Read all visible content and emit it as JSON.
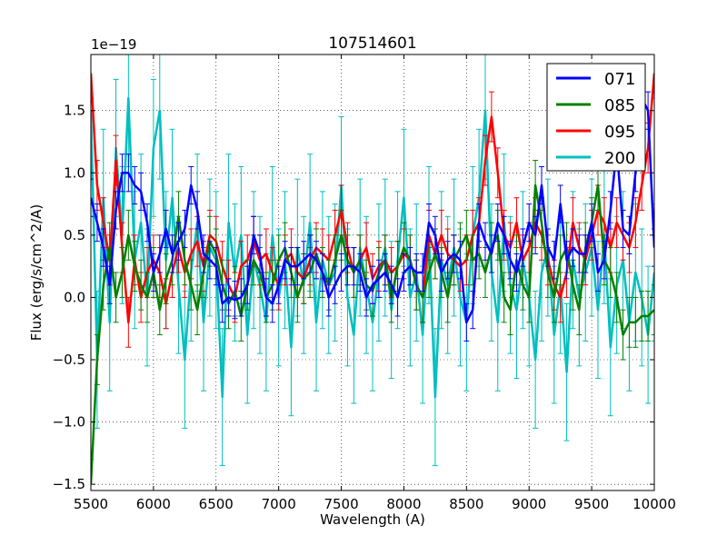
{
  "chart_data": {
    "type": "line",
    "title": "107514601",
    "xlabel": "Wavelength (A)",
    "ylabel": "Flux (erg/s/cm^2/A)",
    "offset_label": "1e−19",
    "xlim": [
      5500,
      10000
    ],
    "ylim": [
      -1.55,
      1.95
    ],
    "xticks": [
      5500,
      6000,
      6500,
      7000,
      7500,
      8000,
      8500,
      9000,
      9500,
      10000
    ],
    "xtick_labels": [
      "5500",
      "6000",
      "6500",
      "7000",
      "7500",
      "8000",
      "8500",
      "9000",
      "9500",
      "10000"
    ],
    "yticks": [
      -1.5,
      -1.0,
      -0.5,
      0.0,
      0.5,
      1.0,
      1.5
    ],
    "ytick_labels": [
      "−1.5",
      "−1.0",
      "−0.5",
      "0.0",
      "0.5",
      "1.0",
      "1.5"
    ],
    "grid": true,
    "legend_position": "top-right",
    "series": [
      {
        "name": "071",
        "color": "#0000ff",
        "x": [
          5500,
          5550,
          5600,
          5650,
          5700,
          5750,
          5800,
          5850,
          5900,
          5950,
          6000,
          6050,
          6100,
          6150,
          6200,
          6250,
          6300,
          6350,
          6400,
          6450,
          6500,
          6550,
          6600,
          6650,
          6700,
          6750,
          6800,
          6850,
          6900,
          6950,
          7000,
          7050,
          7100,
          7150,
          7200,
          7250,
          7300,
          7350,
          7400,
          7450,
          7500,
          7550,
          7600,
          7650,
          7700,
          7750,
          7800,
          7850,
          7900,
          7950,
          8000,
          8050,
          8100,
          8150,
          8200,
          8250,
          8300,
          8350,
          8400,
          8450,
          8500,
          8550,
          8600,
          8650,
          8700,
          8750,
          8800,
          8850,
          8900,
          8950,
          9000,
          9050,
          9100,
          9150,
          9200,
          9250,
          9300,
          9350,
          9400,
          9450,
          9500,
          9550,
          9600,
          9650,
          9700,
          9750,
          9800,
          9850,
          9900,
          9950,
          10000
        ],
        "y": [
          0.8,
          0.6,
          0.4,
          0.1,
          0.7,
          1.0,
          1.0,
          0.9,
          0.85,
          0.6,
          0.2,
          0.35,
          0.55,
          0.35,
          0.45,
          0.55,
          0.9,
          0.7,
          0.35,
          0.3,
          0.25,
          -0.05,
          0.0,
          -0.02,
          0.0,
          0.1,
          0.5,
          0.35,
          0.0,
          -0.05,
          0.1,
          0.3,
          0.25,
          0.25,
          0.3,
          0.35,
          0.3,
          0.2,
          0.0,
          0.1,
          0.2,
          0.25,
          0.25,
          0.2,
          0.0,
          0.1,
          0.15,
          0.2,
          0.1,
          0.0,
          0.2,
          0.25,
          0.2,
          0.2,
          0.6,
          0.5,
          0.2,
          0.3,
          0.35,
          0.3,
          -0.2,
          -0.1,
          0.6,
          0.45,
          0.35,
          0.6,
          0.5,
          0.3,
          0.2,
          0.4,
          0.6,
          0.5,
          0.9,
          0.4,
          0.3,
          0.75,
          0.3,
          0.4,
          0.35,
          0.35,
          0.6,
          0.2,
          0.3,
          0.7,
          1.2,
          0.55,
          0.5,
          1.0,
          1.6,
          1.5,
          0.4
        ],
        "err": 0.15
      },
      {
        "name": "085",
        "color": "#008000",
        "x": [
          5500,
          5550,
          5600,
          5650,
          5700,
          5750,
          5800,
          5850,
          5900,
          5950,
          6000,
          6050,
          6100,
          6150,
          6200,
          6250,
          6300,
          6350,
          6400,
          6450,
          6500,
          6550,
          6600,
          6650,
          6700,
          6750,
          6800,
          6850,
          6900,
          6950,
          7000,
          7050,
          7100,
          7150,
          7200,
          7250,
          7300,
          7350,
          7400,
          7450,
          7500,
          7550,
          7600,
          7650,
          7700,
          7750,
          7800,
          7850,
          7900,
          7950,
          8000,
          8050,
          8100,
          8150,
          8200,
          8250,
          8300,
          8350,
          8400,
          8450,
          8500,
          8550,
          8600,
          8650,
          8700,
          8750,
          8800,
          8850,
          8900,
          8950,
          9000,
          9050,
          9100,
          9150,
          9200,
          9250,
          9300,
          9350,
          9400,
          9450,
          9500,
          9550,
          9600,
          9650,
          9700,
          9750,
          9800,
          9850,
          9900,
          9950,
          10000
        ],
        "y": [
          -1.5,
          -0.5,
          0.1,
          0.4,
          0.0,
          0.2,
          0.5,
          0.25,
          0.1,
          0.0,
          0.2,
          -0.1,
          0.15,
          0.3,
          0.65,
          0.3,
          0.1,
          -0.1,
          0.2,
          0.45,
          0.35,
          0.1,
          -0.05,
          0.05,
          -0.15,
          0.1,
          0.3,
          0.2,
          0.0,
          0.1,
          0.3,
          0.4,
          0.2,
          0.0,
          0.15,
          0.2,
          0.35,
          0.2,
          0.1,
          0.3,
          0.5,
          0.3,
          0.2,
          0.3,
          0.1,
          0.05,
          0.2,
          0.3,
          0.0,
          0.25,
          0.4,
          0.3,
          0.1,
          0.0,
          0.2,
          0.35,
          0.2,
          0.0,
          0.3,
          0.4,
          0.5,
          0.3,
          0.35,
          0.2,
          0.4,
          0.5,
          0.0,
          -0.1,
          0.3,
          0.1,
          0.0,
          0.9,
          0.6,
          0.2,
          0.0,
          0.3,
          0.4,
          0.1,
          -0.1,
          0.4,
          0.6,
          0.9,
          0.3,
          0.2,
          0.0,
          -0.3,
          -0.2,
          -0.2,
          -0.15,
          -0.15,
          -0.1
        ],
        "err": 0.2
      },
      {
        "name": "095",
        "color": "#ff0000",
        "x": [
          5500,
          5550,
          5600,
          5650,
          5700,
          5750,
          5800,
          5850,
          5900,
          5950,
          6000,
          6050,
          6100,
          6150,
          6200,
          6250,
          6300,
          6350,
          6400,
          6450,
          6500,
          6550,
          6600,
          6650,
          6700,
          6750,
          6800,
          6850,
          6900,
          6950,
          7000,
          7050,
          7100,
          7150,
          7200,
          7250,
          7300,
          7350,
          7400,
          7450,
          7500,
          7550,
          7600,
          7650,
          7700,
          7750,
          7800,
          7850,
          7900,
          7950,
          8000,
          8050,
          8100,
          8150,
          8200,
          8250,
          8300,
          8350,
          8400,
          8450,
          8500,
          8550,
          8600,
          8650,
          8700,
          8750,
          8800,
          8850,
          8900,
          8950,
          9000,
          9050,
          9100,
          9150,
          9200,
          9250,
          9300,
          9350,
          9400,
          9450,
          9500,
          9550,
          9600,
          9650,
          9700,
          9750,
          9800,
          9850,
          9900,
          9950,
          10000
        ],
        "y": [
          1.8,
          0.9,
          0.6,
          0.3,
          1.1,
          0.4,
          -0.2,
          0.3,
          0.0,
          0.2,
          0.3,
          0.2,
          -0.05,
          0.2,
          0.4,
          0.2,
          0.35,
          0.45,
          0.25,
          0.5,
          0.45,
          0.25,
          0.1,
          0.0,
          0.25,
          0.3,
          0.45,
          0.3,
          0.35,
          0.2,
          0.1,
          0.3,
          0.35,
          0.2,
          0.15,
          0.3,
          0.4,
          0.35,
          0.3,
          0.5,
          0.7,
          0.4,
          0.2,
          0.3,
          0.4,
          0.15,
          0.25,
          0.3,
          0.2,
          0.25,
          0.35,
          0.3,
          0.1,
          0.0,
          0.5,
          0.35,
          0.5,
          0.35,
          0.3,
          0.25,
          0.3,
          0.5,
          0.6,
          1.1,
          1.45,
          1.0,
          0.5,
          0.4,
          0.6,
          0.3,
          0.4,
          0.6,
          0.5,
          0.3,
          0.1,
          0.0,
          0.2,
          0.6,
          0.4,
          0.3,
          0.5,
          0.7,
          0.6,
          0.4,
          0.6,
          0.5,
          0.4,
          0.6,
          0.9,
          1.2,
          1.8
        ],
        "err": 0.2
      },
      {
        "name": "200",
        "color": "#00bfbf",
        "x": [
          5500,
          5550,
          5600,
          5650,
          5700,
          5750,
          5800,
          5850,
          5900,
          5950,
          6000,
          6050,
          6100,
          6150,
          6200,
          6250,
          6300,
          6350,
          6400,
          6450,
          6500,
          6550,
          6600,
          6650,
          6700,
          6750,
          6800,
          6850,
          6900,
          6950,
          7000,
          7050,
          7100,
          7150,
          7200,
          7250,
          7300,
          7350,
          7400,
          7450,
          7500,
          7550,
          7600,
          7650,
          7700,
          7750,
          7800,
          7850,
          7900,
          7950,
          8000,
          8050,
          8100,
          8150,
          8200,
          8250,
          8300,
          8350,
          8400,
          8450,
          8500,
          8550,
          8600,
          8650,
          8700,
          8750,
          8800,
          8850,
          8900,
          8950,
          9000,
          9050,
          9100,
          9150,
          9200,
          9250,
          9300,
          9350,
          9400,
          9450,
          9500,
          9550,
          9600,
          9650,
          9700,
          9750,
          9800,
          9850,
          9900,
          9950,
          10000
        ],
        "y": [
          1.5,
          -0.5,
          0.8,
          -0.2,
          1.2,
          0.5,
          1.6,
          0.3,
          0.6,
          0.0,
          1.2,
          1.5,
          0.3,
          0.8,
          0.1,
          -0.5,
          0.2,
          0.6,
          -0.2,
          0.4,
          0.3,
          -0.8,
          0.6,
          0.2,
          0.5,
          -0.3,
          0.3,
          0.1,
          -0.2,
          0.5,
          0.0,
          0.3,
          -0.4,
          0.4,
          0.1,
          0.6,
          -0.2,
          0.3,
          0.1,
          0.2,
          0.9,
          0.0,
          -0.3,
          0.4,
          0.1,
          -0.2,
          0.2,
          0.4,
          -0.1,
          0.3,
          0.8,
          0.0,
          0.2,
          -0.3,
          0.5,
          -0.8,
          0.3,
          0.1,
          0.4,
          0.0,
          -0.2,
          0.5,
          0.8,
          1.5,
          0.2,
          -0.2,
          0.6,
          0.1,
          -0.1,
          0.3,
          0.0,
          -0.5,
          0.2,
          0.4,
          -0.3,
          0.1,
          -0.6,
          0.3,
          0.0,
          0.2,
          0.4,
          -0.1,
          0.5,
          -0.4,
          0.1,
          0.3,
          -0.2,
          0.2,
          0.0,
          -0.3,
          0.2
        ],
        "err": 0.55
      }
    ]
  }
}
